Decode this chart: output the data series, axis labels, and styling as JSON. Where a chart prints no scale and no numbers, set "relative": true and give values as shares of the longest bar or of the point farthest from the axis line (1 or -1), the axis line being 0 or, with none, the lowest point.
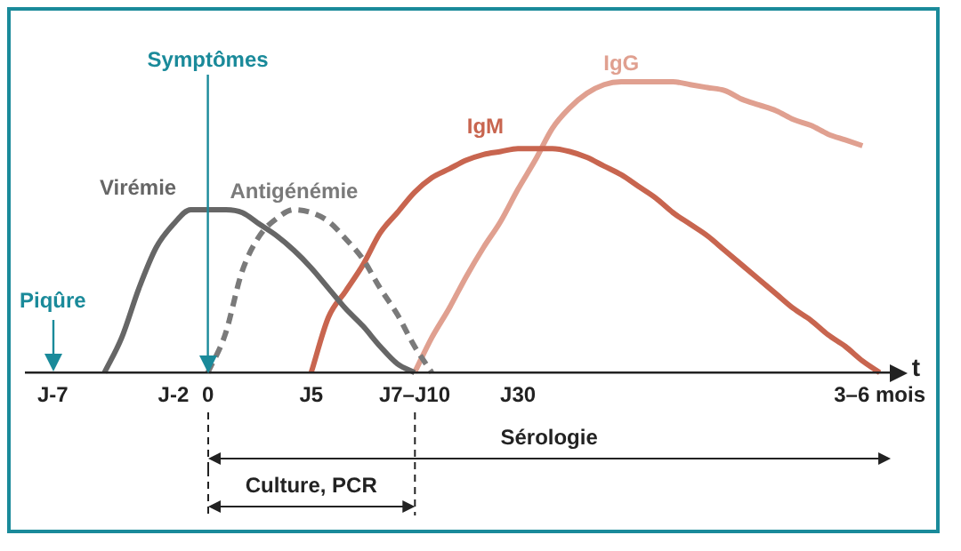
{
  "chart_data": {
    "type": "line",
    "relative": true,
    "xlabel": "t",
    "categories": [
      null,
      "J-7",
      null,
      null,
      null,
      null,
      null,
      null,
      "J-2",
      null,
      "0",
      null,
      null,
      null,
      null,
      null,
      "J5",
      null,
      null,
      null,
      null,
      null,
      "J7–J10",
      null,
      null,
      null,
      null,
      null,
      "J30",
      null,
      null,
      null,
      null,
      null,
      null,
      null,
      null,
      null,
      null,
      null,
      null,
      null,
      null,
      null,
      null,
      null,
      null,
      null,
      null,
      "3–6 mois"
    ],
    "series": [
      {
        "name": "Virémie",
        "color": "#666666",
        "line_style": "solid",
        "values": [
          null,
          null,
          null,
          null,
          0,
          0.12,
          0.29,
          0.43,
          0.51,
          0.56,
          0.56,
          0.56,
          0.55,
          0.51,
          0.47,
          0.42,
          0.36,
          0.29,
          0.22,
          0.16,
          0.09,
          0.03,
          0,
          null,
          null,
          null,
          null,
          null,
          null,
          null,
          null,
          null,
          null,
          null,
          null,
          null,
          null,
          null,
          null,
          null,
          null,
          null,
          null,
          null,
          null,
          null,
          null,
          null,
          null,
          null
        ]
      },
      {
        "name": "Antigénémie",
        "color": "#7a7a7a",
        "line_style": "dashed",
        "values": [
          null,
          null,
          null,
          null,
          null,
          null,
          null,
          null,
          null,
          null,
          0,
          0.13,
          0.35,
          0.47,
          0.53,
          0.56,
          0.55,
          0.52,
          0.46,
          0.39,
          0.29,
          0.2,
          0.09,
          0,
          null,
          null,
          null,
          null,
          null,
          null,
          null,
          null,
          null,
          null,
          null,
          null,
          null,
          null,
          null,
          null,
          null,
          null,
          null,
          null,
          null,
          null,
          null,
          null,
          null,
          null
        ]
      },
      {
        "name": "IgM",
        "color": "#c8654f",
        "line_style": "solid",
        "values": [
          null,
          null,
          null,
          null,
          null,
          null,
          null,
          null,
          null,
          null,
          null,
          null,
          null,
          null,
          null,
          null,
          0,
          0.19,
          0.28,
          0.37,
          0.48,
          0.55,
          0.62,
          0.67,
          0.7,
          0.73,
          0.75,
          0.76,
          0.77,
          0.77,
          0.77,
          0.76,
          0.74,
          0.71,
          0.68,
          0.64,
          0.6,
          0.55,
          0.51,
          0.47,
          0.42,
          0.37,
          0.32,
          0.27,
          0.22,
          0.18,
          0.13,
          0.09,
          0.04,
          0
        ]
      },
      {
        "name": "IgG",
        "color": "#e0a090",
        "line_style": "solid",
        "values": [
          null,
          null,
          null,
          null,
          null,
          null,
          null,
          null,
          null,
          null,
          null,
          null,
          null,
          null,
          null,
          null,
          null,
          null,
          null,
          null,
          null,
          null,
          0,
          0.12,
          0.22,
          0.33,
          0.43,
          0.52,
          0.63,
          0.73,
          0.84,
          0.91,
          0.96,
          0.99,
          1,
          1,
          1,
          1,
          0.99,
          0.98,
          0.97,
          0.94,
          0.92,
          0.9,
          0.87,
          0.85,
          0.82,
          0.8,
          0.78,
          null
        ]
      }
    ],
    "ref_lines": [
      {
        "axis": "x",
        "value": "0",
        "label": "Symptômes",
        "color": "#1a8a9a"
      }
    ],
    "annotations": [
      "Piqûre",
      "Sérologie",
      "Culture, PCR"
    ]
  }
}
